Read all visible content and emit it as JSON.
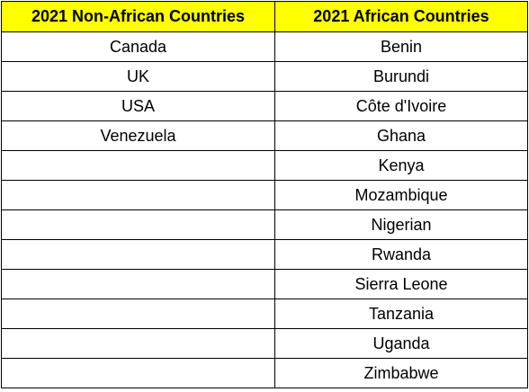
{
  "table": {
    "headers": [
      "2021 Non-African Countries",
      "2021 African Countries"
    ],
    "non_african": [
      "Canada",
      "UK",
      "USA",
      "Venezuela",
      "",
      "",
      "",
      "",
      "",
      "",
      "",
      ""
    ],
    "african": [
      "Benin",
      "Burundi",
      "Côte d'Ivoire",
      "Ghana",
      "Kenya",
      "Mozambique",
      "Nigerian",
      "Rwanda",
      "Sierra Leone",
      "Tanzania",
      "Uganda",
      "Zimbabwe"
    ],
    "header_color": "#ffff00"
  }
}
